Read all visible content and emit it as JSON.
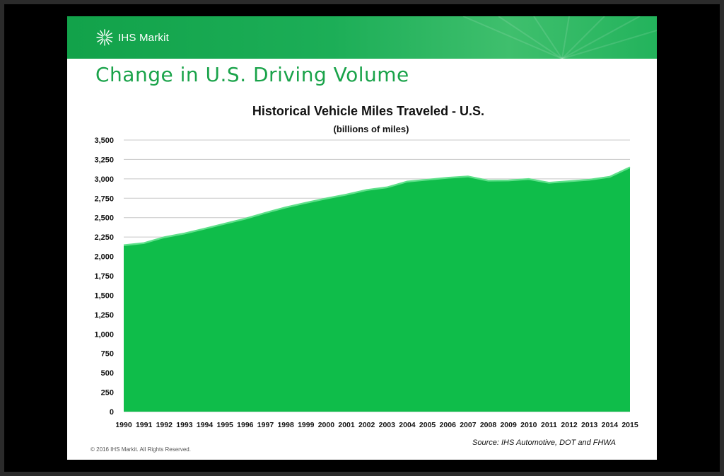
{
  "brand": {
    "name": "IHS Markit",
    "logo_icon": "burst-globe-icon"
  },
  "slide_title": "Change in U.S. Driving Volume",
  "copyright": "© 2016 IHS Markit. All Rights Reserved.",
  "source": "Source: IHS Automotive, DOT and FHWA",
  "colors": {
    "banner": "#1cae57",
    "title": "#1aa34a",
    "area_fill": "#0fbd4a",
    "area_edge": "#5fe08a"
  },
  "chart_data": {
    "type": "area",
    "title": "Historical Vehicle Miles Traveled  - U.S.",
    "subtitle": "(billions of miles)",
    "xlabel": "",
    "ylabel": "",
    "ylim": [
      0,
      3500
    ],
    "yticks": [
      "0",
      "250",
      "500",
      "750",
      "1,000",
      "1,250",
      "1,500",
      "1,750",
      "2,000",
      "2,250",
      "2,500",
      "2,750",
      "3,000",
      "3,250",
      "3,500"
    ],
    "grid": true,
    "legend": "none",
    "categories": [
      "1990",
      "1991",
      "1992",
      "1993",
      "1994",
      "1995",
      "1996",
      "1997",
      "1998",
      "1999",
      "2000",
      "2001",
      "2002",
      "2003",
      "2004",
      "2005",
      "2006",
      "2007",
      "2008",
      "2009",
      "2010",
      "2011",
      "2012",
      "2013",
      "2014",
      "2015"
    ],
    "values": [
      2144,
      2172,
      2247,
      2296,
      2358,
      2423,
      2486,
      2562,
      2632,
      2691,
      2747,
      2797,
      2856,
      2890,
      2965,
      2989,
      3014,
      3031,
      2977,
      2979,
      2997,
      2950,
      2969,
      2988,
      3026,
      3148
    ]
  }
}
